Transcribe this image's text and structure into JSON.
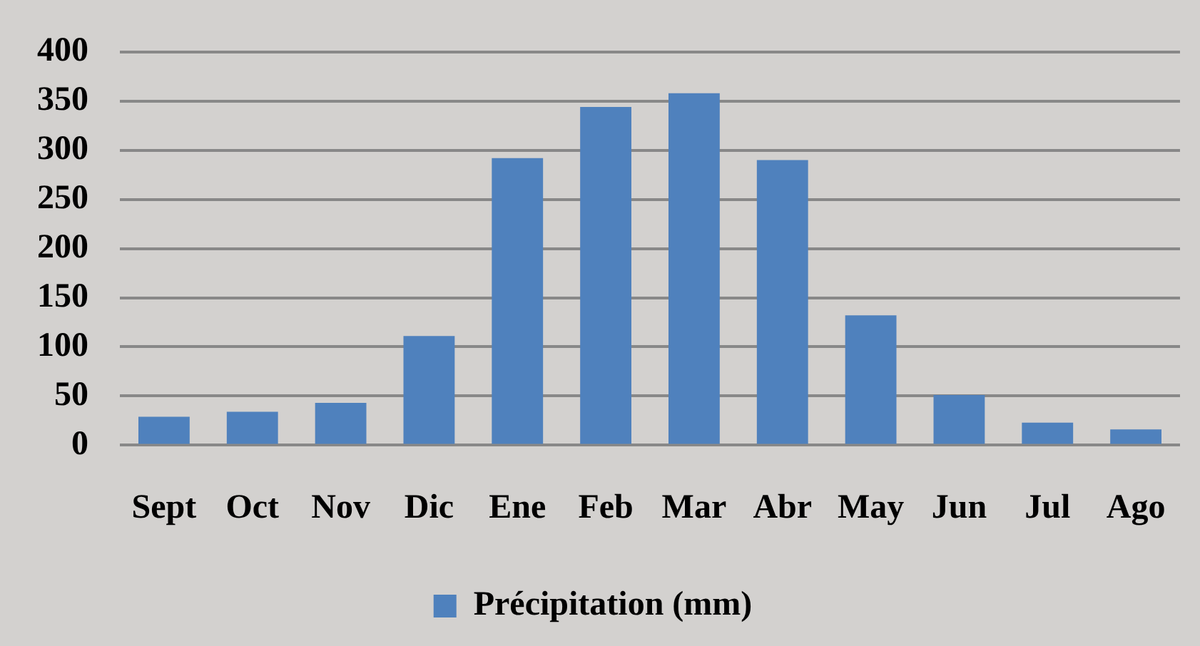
{
  "chart_data": {
    "type": "bar",
    "categories": [
      "Sept",
      "Oct",
      "Nov",
      "Dic",
      "Ene",
      "Feb",
      "Mar",
      "Abr",
      "May",
      "Jun",
      "Jul",
      "Ago"
    ],
    "series": [
      {
        "name": "Précipitation (mm)",
        "color": "#4f81bd",
        "values": [
          29,
          34,
          43,
          111,
          292,
          344,
          358,
          290,
          132,
          51,
          23,
          16
        ]
      }
    ],
    "ylim": [
      0,
      400
    ],
    "yticks": [
      0,
      50,
      100,
      150,
      200,
      250,
      300,
      350,
      400
    ],
    "grid": "y",
    "legend": "bottom"
  }
}
